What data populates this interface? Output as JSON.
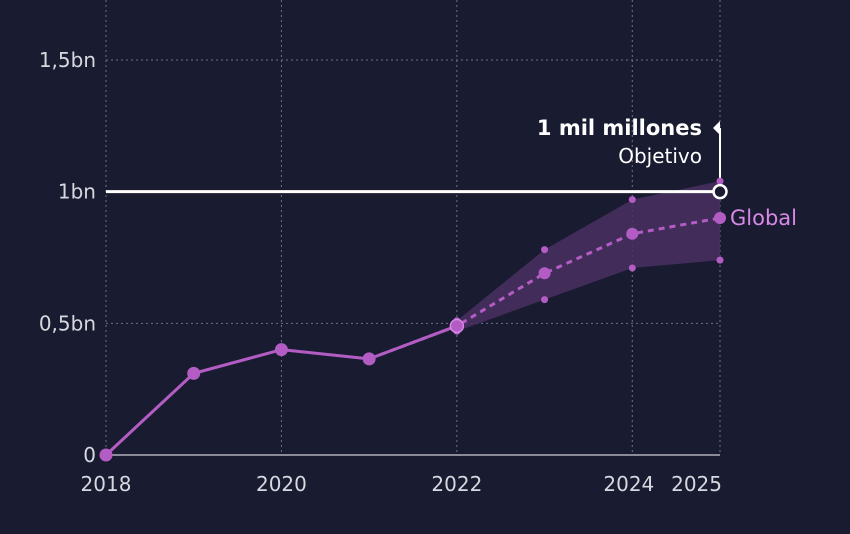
{
  "chart_data": {
    "type": "line",
    "title": "",
    "xlabel": "",
    "ylabel": "",
    "x_ticks": [
      "2018",
      "2020",
      "2022",
      "2024",
      "2025"
    ],
    "y_ticks": [
      "0",
      "0,5bn",
      "1bn",
      "1,5bn"
    ],
    "y_tick_values": [
      0,
      0.5,
      1.0,
      1.5
    ],
    "ylim": [
      0,
      1.7
    ],
    "xlim": [
      2018,
      2025
    ],
    "grid": true,
    "series": [
      {
        "name": "Global",
        "color": "#b35dc4",
        "actual": {
          "x": [
            2018,
            2019,
            2020,
            2021,
            2022
          ],
          "y": [
            0,
            0.31,
            0.4,
            0.365,
            0.49
          ]
        },
        "projection": {
          "x": [
            2021,
            2022,
            2023,
            2024,
            2025
          ],
          "y": [
            0.365,
            0.49,
            0.69,
            0.84,
            0.9
          ]
        },
        "upper": {
          "x": [
            2022,
            2023,
            2024,
            2025
          ],
          "y": [
            0.51,
            0.78,
            0.97,
            1.04
          ]
        },
        "lower": {
          "x": [
            2022,
            2023,
            2024,
            2025
          ],
          "y": [
            0.47,
            0.59,
            0.71,
            0.74
          ]
        }
      }
    ],
    "target": {
      "value": 1.0,
      "label_bold": "1 mil millones",
      "label": "Objetivo",
      "year": 2025
    },
    "colors": {
      "background": "#191b30",
      "series": "#b35dc4",
      "series_label": "#d889e6",
      "band": "#4a2f62",
      "target": "#ffffff",
      "grid": "#6e7086"
    }
  }
}
